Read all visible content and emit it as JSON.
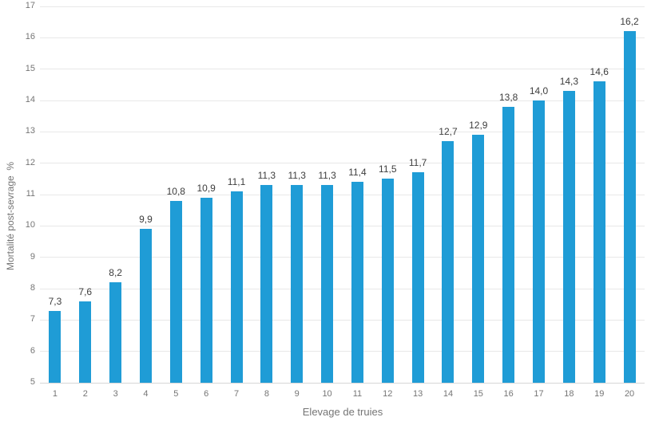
{
  "chart_data": {
    "type": "bar",
    "title": "",
    "categories": [
      "1",
      "2",
      "3",
      "4",
      "5",
      "6",
      "7",
      "8",
      "9",
      "10",
      "11",
      "12",
      "13",
      "14",
      "15",
      "16",
      "17",
      "18",
      "19",
      "20"
    ],
    "values": [
      7.3,
      7.6,
      8.2,
      9.9,
      10.8,
      10.9,
      11.1,
      11.3,
      11.3,
      11.3,
      11.4,
      11.5,
      11.7,
      12.7,
      12.9,
      13.8,
      14.0,
      14.3,
      14.6,
      16.2
    ],
    "value_labels": [
      "7,3",
      "7,6",
      "8,2",
      "9,9",
      "10,8",
      "10,9",
      "11,1",
      "11,3",
      "11,3",
      "11,3",
      "11,4",
      "11,5",
      "11,7",
      "12,7",
      "12,9",
      "13,8",
      "14,0",
      "14,3",
      "14,6",
      "16,2"
    ],
    "xlabel": "Elevage de truies",
    "ylabel": "Mortalité post-sevrage  %",
    "ylim": [
      5,
      17
    ],
    "ytick_step": 1,
    "grid": true,
    "legend_position": "none",
    "colors": {
      "bar": "#1F9CD6",
      "gridline": "#E8E8E8",
      "axis_line": "#D6D6D6",
      "tick_text": "#757575",
      "value_text": "#3D3D3D",
      "background": "#FFFFFF"
    }
  }
}
